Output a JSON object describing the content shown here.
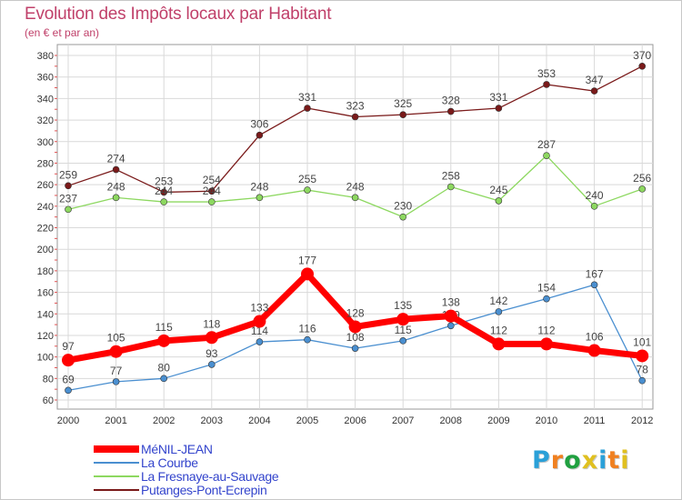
{
  "chart_data": {
    "type": "line",
    "title": "Evolution des Impôts locaux par Habitant",
    "subtitle": "(en € et par an)",
    "x": [
      "2000",
      "2001",
      "2002",
      "2003",
      "2004",
      "2005",
      "2006",
      "2007",
      "2008",
      "2009",
      "2010",
      "2011",
      "2012"
    ],
    "ylim": [
      60,
      380
    ],
    "yticks": [
      60,
      80,
      100,
      120,
      140,
      160,
      180,
      200,
      220,
      240,
      260,
      280,
      300,
      320,
      340,
      360,
      380
    ],
    "grid": true,
    "legend_position": "bottom-left",
    "series": [
      {
        "name": "MéNIL-JEAN",
        "color": "#ff0000",
        "values": [
          97,
          105,
          115,
          118,
          133,
          177,
          128,
          135,
          138,
          112,
          112,
          106,
          101
        ]
      },
      {
        "name": "La Courbe",
        "color": "#4a8fd0",
        "values": [
          69,
          77,
          80,
          93,
          114,
          116,
          108,
          115,
          129,
          142,
          154,
          167,
          78
        ]
      },
      {
        "name": "La Fresnaye-au-Sauvage",
        "color": "#8dd860",
        "values": [
          237,
          248,
          244,
          244,
          248,
          255,
          248,
          230,
          258,
          245,
          287,
          240,
          256
        ]
      },
      {
        "name": "Putanges-Pont-Ecrepin",
        "color": "#7a1a1a",
        "values": [
          259,
          274,
          253,
          254,
          306,
          331,
          323,
          325,
          328,
          331,
          353,
          347,
          370
        ]
      }
    ]
  },
  "logo": {
    "letters": [
      "P",
      "r",
      "o",
      "x",
      "i",
      "t",
      "i"
    ],
    "colors": [
      "#2aa0d8",
      "#f08020",
      "#20a040",
      "#e0c020",
      "#2aa0d8",
      "#f08020",
      "#e0c020"
    ]
  }
}
